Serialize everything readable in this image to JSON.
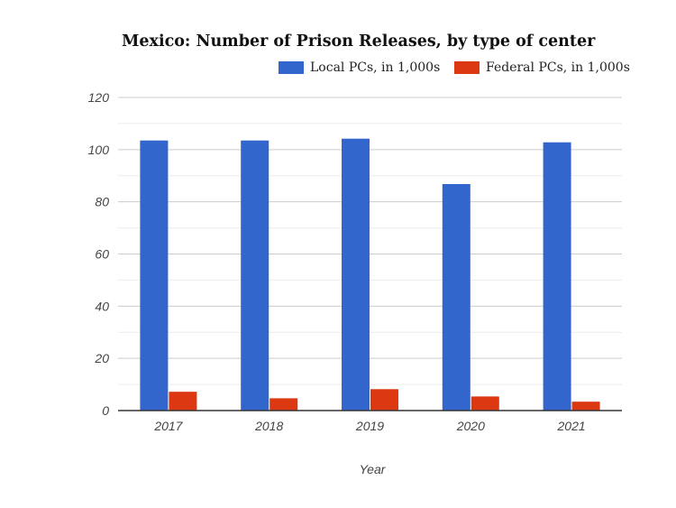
{
  "chart_data": {
    "type": "bar",
    "title": "Mexico: Number of Prison Releases, by type of center",
    "xlabel": "Year",
    "ylabel": "",
    "categories": [
      "2017",
      "2018",
      "2019",
      "2020",
      "2021"
    ],
    "series": [
      {
        "name": "Local PCs, in 1,000s",
        "color": "#3366cc",
        "values": [
          103.5,
          103.5,
          104.2,
          86.8,
          102.8
        ]
      },
      {
        "name": "Federal PCs, in 1,000s",
        "color": "#dc3912",
        "values": [
          7.2,
          4.7,
          8.2,
          5.4,
          3.4
        ]
      }
    ],
    "ylim": [
      0,
      120
    ],
    "yticks": [
      "0",
      "20",
      "40",
      "60",
      "80",
      "100",
      "120"
    ],
    "grid": true,
    "legend": "top-right"
  }
}
